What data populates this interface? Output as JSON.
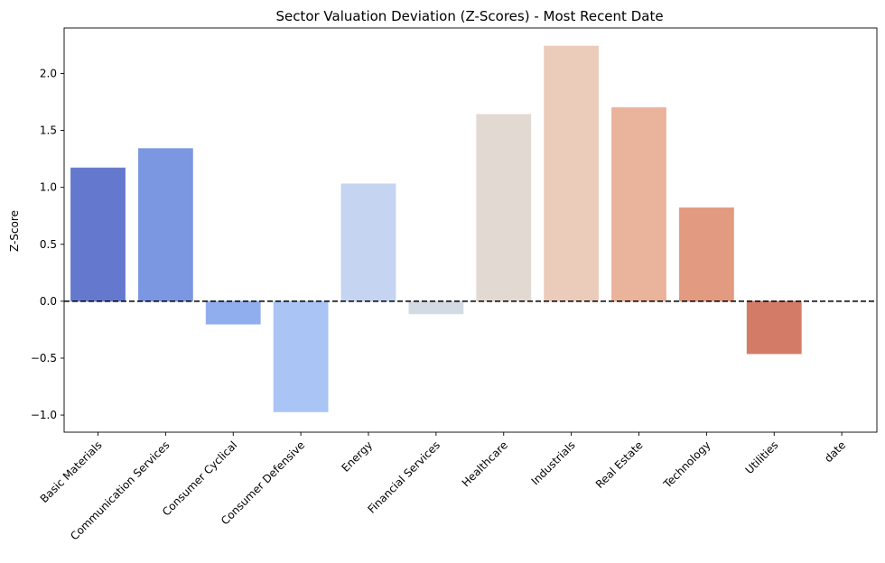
{
  "chart_data": {
    "type": "bar",
    "title": "Sector Valuation Deviation (Z-Scores) - Most Recent Date",
    "xlabel": "",
    "ylabel": "Z-Score",
    "categories": [
      "Basic Materials",
      "Communication Services",
      "Consumer Cyclical",
      "Consumer Defensive",
      "Energy",
      "Financial Services",
      "Healthcare",
      "Industrials",
      "Real Estate",
      "Technology",
      "Utilities",
      "date"
    ],
    "values": [
      1.17,
      1.34,
      -0.2,
      -0.97,
      1.03,
      -0.11,
      1.64,
      2.24,
      1.7,
      0.82,
      -0.46,
      null
    ],
    "colors": [
      "#6479cd",
      "#7b97e2",
      "#90aeee",
      "#a9c4f5",
      "#c4d4f1",
      "#d3dae4",
      "#e3d9d3",
      "#ebcbba",
      "#eab39b",
      "#e29a81",
      "#d47b67",
      null
    ],
    "ylim": [
      -1.15,
      2.4
    ],
    "yticks": [
      -1.0,
      -0.5,
      0.0,
      0.5,
      1.0,
      1.5,
      2.0
    ],
    "ytick_labels": [
      "−1.0",
      "−0.5",
      "0.0",
      "0.5",
      "1.0",
      "1.5",
      "2.0"
    ],
    "reference_line": {
      "y": 0.0,
      "style": "dashed",
      "color": "#000000"
    },
    "grid": false,
    "legend": "none"
  }
}
